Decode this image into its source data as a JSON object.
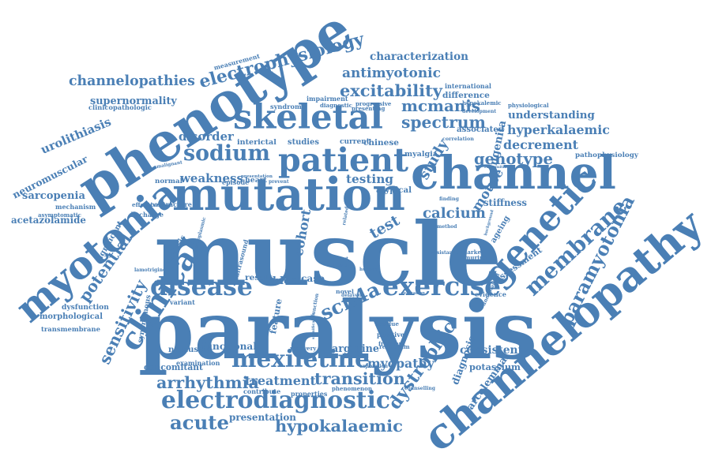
{
  "color": "#4a7fb5",
  "words": [
    "paralysis",
    "muscle",
    "mutation",
    "phenotype",
    "channelopathy",
    "skeletal",
    "myotonia",
    "channel",
    "patient",
    "electrodiagnostic",
    "mexiletine",
    "clinical",
    "genetic",
    "paramyotonia",
    "membrane",
    "exercise",
    "disease",
    "electrophysiology",
    "channelopathies",
    "sodium",
    "excitability",
    "antimyotonic",
    "spectrum",
    "transition",
    "hypokalaemic",
    "dystrophic",
    "potential",
    "sensitivity",
    "hyperkalaemic",
    "genotype",
    "calcium",
    "congenita",
    "mouse",
    "weakness",
    "scn4a",
    "mcmanis",
    "decrement",
    "arrhythmia",
    "treatment",
    "disorder",
    "diagnosis",
    "sarcolemmal",
    "associated",
    "urolithiasis",
    "neuromuscular",
    "sarcopenia",
    "acetazolamide",
    "acute",
    "presentation",
    "cohort",
    "testing",
    "characterization",
    "myopathy",
    "potassium",
    "functional",
    "feature",
    "concomitant",
    "block",
    "case",
    "result",
    "study",
    "test",
    "consistent",
    "difference",
    "understanding",
    "pathophysiology",
    "assessment",
    "ageing",
    "arginine",
    "stiffness",
    "synonymous",
    "supernormality",
    "clinicopathologic",
    "interictal",
    "studies",
    "atypical",
    "current",
    "chinese",
    "myalgia",
    "heart",
    "prevent",
    "episode",
    "significant",
    "analysis",
    "dysfunction",
    "morphological",
    "transmembrane",
    "mechanism",
    "asymptomatic",
    "effective",
    "discharge",
    "international",
    "measurement",
    "syndrome",
    "impairment",
    "diagnostic",
    "progressive",
    "presenting",
    "hypokalemic",
    "physiological",
    "development",
    "correlation",
    "recognition",
    "normal",
    "malignant",
    "contracture",
    "lamotrigine",
    "variant",
    "ultrasound",
    "presentation",
    "sarcoplasmic",
    "namuscia",
    "examination",
    "contribute",
    "properties",
    "phenomenon",
    "counselling",
    "residue",
    "positive",
    "frequent",
    "reticulum",
    "recovery",
    "significance",
    "expression",
    "relaxation",
    "evidence",
    "unexplained",
    "marker",
    "murine",
    "resistance",
    "method",
    "background",
    "finding",
    "function",
    "novel",
    "delayed",
    "related",
    "report",
    "healthy",
    "human",
    "data",
    "serca",
    "severe",
    "model",
    "symptomatic",
    "conclusion",
    "generation",
    "severity",
    "velocity",
    "negative"
  ]
}
